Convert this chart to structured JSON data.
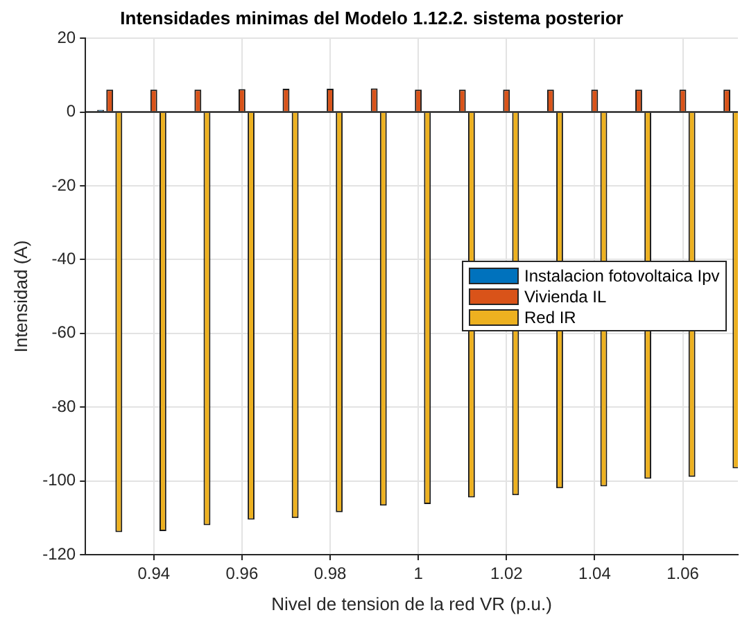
{
  "chart_data": {
    "type": "bar",
    "title": "Intensidades minimas del Modelo 1.12.2. sistema posterior",
    "xlabel": "Nivel de tension de la red VR (p.u.)",
    "ylabel": "Intensidad (A)",
    "x": [
      0.93,
      0.94,
      0.95,
      0.96,
      0.97,
      0.98,
      0.99,
      1.0,
      1.01,
      1.02,
      1.03,
      1.04,
      1.05,
      1.06,
      1.07
    ],
    "series": [
      {
        "name": "Instalacion fotovoltaica Ipv",
        "color": "#0072bd",
        "values": [
          0.6,
          0,
          0,
          0,
          0,
          0,
          0,
          0,
          0,
          0,
          0,
          0,
          0,
          0,
          0
        ]
      },
      {
        "name": "Vivienda IL",
        "color": "#d95319",
        "values": [
          6.1,
          6.1,
          6.1,
          6.2,
          6.3,
          6.3,
          6.4,
          6.1,
          6.1,
          6.1,
          6.1,
          6.1,
          6.1,
          6.1,
          6.1
        ]
      },
      {
        "name": "Red IR",
        "color": "#edb120",
        "values": [
          -113.9,
          -113.6,
          -112.0,
          -110.5,
          -110.1,
          -108.5,
          -106.7,
          -106.3,
          -104.5,
          -103.9,
          -102.0,
          -101.5,
          -99.4,
          -98.9,
          -96.6
        ]
      }
    ],
    "xlim": [
      0.9245,
      1.0725
    ],
    "xticks": [
      0.94,
      0.96,
      0.98,
      1,
      1.02,
      1.04,
      1.06
    ],
    "ylim": [
      -120,
      20
    ],
    "yticks": [
      -120,
      -100,
      -80,
      -60,
      -40,
      -20,
      0,
      20
    ],
    "grid": true,
    "legend": "right"
  }
}
